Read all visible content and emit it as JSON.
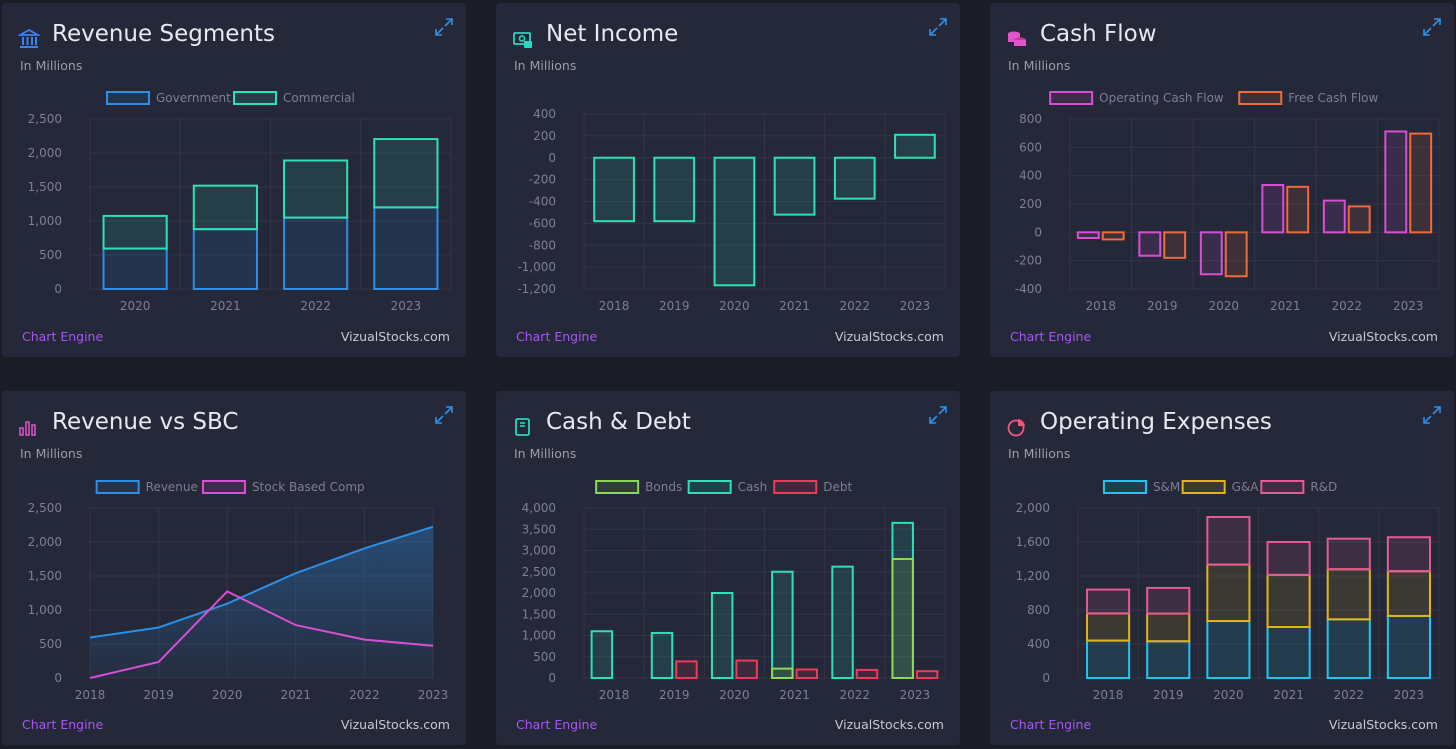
{
  "colors": {
    "background": "#1b1c25",
    "card": "#252838",
    "engine_link": "#a855f7",
    "expand_icon": "#2f8fe5"
  },
  "cards": [
    {
      "title": "Revenue Segments",
      "subtitle": "In Millions",
      "icon": "bank-icon",
      "icon_color": "#3b82f6",
      "footer_engine": "Chart Engine",
      "footer_site": "VizualStocks.com"
    },
    {
      "title": "Net Income",
      "subtitle": "In Millions",
      "icon": "money-icon",
      "icon_color": "#2dd4bf",
      "footer_engine": "Chart Engine",
      "footer_site": "VizualStocks.com"
    },
    {
      "title": "Cash Flow",
      "subtitle": "In Millions",
      "icon": "coins-icon",
      "icon_color": "#e255c9",
      "footer_engine": "Chart Engine",
      "footer_site": "VizualStocks.com"
    },
    {
      "title": "Revenue vs SBC",
      "subtitle": "In Millions",
      "icon": "bar-chart-icon",
      "icon_color": "#e255c9",
      "footer_engine": "Chart Engine",
      "footer_site": "VizualStocks.com"
    },
    {
      "title": "Cash & Debt",
      "subtitle": "In Millions",
      "icon": "book-icon",
      "icon_color": "#2dd4bf",
      "footer_engine": "Chart Engine",
      "footer_site": "VizualStocks.com"
    },
    {
      "title": "Operating Expenses",
      "subtitle": "In Millions",
      "icon": "pie-chart-icon",
      "icon_color": "#f0577a",
      "footer_engine": "Chart Engine",
      "footer_site": "VizualStocks.com"
    }
  ],
  "chart_data": [
    {
      "type": "bar",
      "stacked": true,
      "categories": [
        "2020",
        "2021",
        "2022",
        "2023"
      ],
      "series": [
        {
          "name": "Government",
          "color": "#2b8fe6",
          "values": [
            595,
            880,
            1050,
            1200
          ]
        },
        {
          "name": "Commercial",
          "color": "#2ee0b5",
          "values": [
            480,
            640,
            840,
            1005
          ]
        }
      ],
      "ylim": [
        0,
        2500
      ],
      "yticks": [
        0,
        500,
        1000,
        1500,
        2000,
        2500
      ],
      "ytick_labels": [
        "0",
        "500",
        "1,000",
        "1,500",
        "2,000",
        "2,500"
      ],
      "legend_position": "top",
      "grid": true
    },
    {
      "type": "bar",
      "categories": [
        "2018",
        "2019",
        "2020",
        "2021",
        "2022",
        "2023"
      ],
      "series": [
        {
          "color": "#2ee0b5",
          "values": [
            -580,
            -580,
            -1166,
            -520,
            -374,
            210
          ]
        }
      ],
      "ylim": [
        -1200,
        400
      ],
      "yticks": [
        -1200,
        -1000,
        -800,
        -600,
        -400,
        -200,
        0,
        200,
        400
      ],
      "ytick_labels": [
        "-1,200",
        "-1,000",
        "-800",
        "-600",
        "-400",
        "-200",
        "0",
        "200",
        "400"
      ],
      "grid": true
    },
    {
      "type": "bar",
      "categories": [
        "2018",
        "2019",
        "2020",
        "2021",
        "2022",
        "2023"
      ],
      "series": [
        {
          "name": "Operating Cash Flow",
          "color": "#d94fd3",
          "values": [
            -40,
            -165,
            -296,
            334,
            224,
            712
          ]
        },
        {
          "name": "Free Cash Flow",
          "color": "#f06b3a",
          "values": [
            -50,
            -180,
            -310,
            321,
            183,
            697
          ]
        }
      ],
      "ylim": [
        -400,
        800
      ],
      "yticks": [
        -400,
        -200,
        0,
        200,
        400,
        600,
        800
      ],
      "ytick_labels": [
        "-400",
        "-200",
        "0",
        "200",
        "400",
        "600",
        "800"
      ],
      "legend_position": "top",
      "grid": true
    },
    {
      "type": "line",
      "categories": [
        "2018",
        "2019",
        "2020",
        "2021",
        "2022",
        "2023"
      ],
      "series": [
        {
          "name": "Revenue",
          "color": "#2b8fe6",
          "values": [
            595,
            743,
            1093,
            1542,
            1906,
            2225
          ],
          "fill": true
        },
        {
          "name": "Stock Based Comp",
          "color": "#d94fd3",
          "values": [
            0,
            235,
            1273,
            778,
            565,
            475
          ]
        }
      ],
      "ylim": [
        0,
        2500
      ],
      "yticks": [
        0,
        500,
        1000,
        1500,
        2000,
        2500
      ],
      "ytick_labels": [
        "0",
        "500",
        "1,000",
        "1,500",
        "2,000",
        "2,500"
      ],
      "legend_position": "top",
      "grid": true
    },
    {
      "type": "bar",
      "categories": [
        "2018",
        "2019",
        "2020",
        "2021",
        "2022",
        "2023"
      ],
      "series": [
        {
          "name": "Bonds",
          "color": "#8bd957",
          "values": [
            0,
            0,
            0,
            220,
            0,
            2800
          ]
        },
        {
          "name": "Cash",
          "color": "#2ee0b5",
          "values": [
            1100,
            1060,
            2000,
            2500,
            2620,
            3650
          ]
        },
        {
          "name": "Debt",
          "color": "#ee3a5a",
          "values": [
            0,
            390,
            410,
            200,
            190,
            160
          ]
        }
      ],
      "overlay": {
        "Bonds": "Cash"
      },
      "ylim": [
        0,
        4000
      ],
      "yticks": [
        0,
        500,
        1000,
        1500,
        2000,
        2500,
        3000,
        3500,
        4000
      ],
      "ytick_labels": [
        "0",
        "500",
        "1,000",
        "1,500",
        "2,000",
        "2,500",
        "3,000",
        "3,500",
        "4,000"
      ],
      "legend_position": "top",
      "grid": true
    },
    {
      "type": "bar",
      "stacked": true,
      "categories": [
        "2018",
        "2019",
        "2020",
        "2021",
        "2022",
        "2023"
      ],
      "series": [
        {
          "name": "S&M",
          "color": "#22c5ee",
          "values": [
            440,
            432,
            670,
            600,
            690,
            730
          ]
        },
        {
          "name": "G&A",
          "color": "#e2b419",
          "values": [
            320,
            326,
            664,
            613,
            589,
            526
          ]
        },
        {
          "name": "R&D",
          "color": "#e45a95",
          "values": [
            280,
            302,
            560,
            387,
            360,
            400
          ]
        }
      ],
      "ylim": [
        0,
        2000
      ],
      "yticks": [
        0,
        400,
        800,
        1200,
        1600,
        2000
      ],
      "ytick_labels": [
        "0",
        "400",
        "800",
        "1,200",
        "1,600",
        "2,000"
      ],
      "legend_position": "top",
      "grid": true
    }
  ]
}
